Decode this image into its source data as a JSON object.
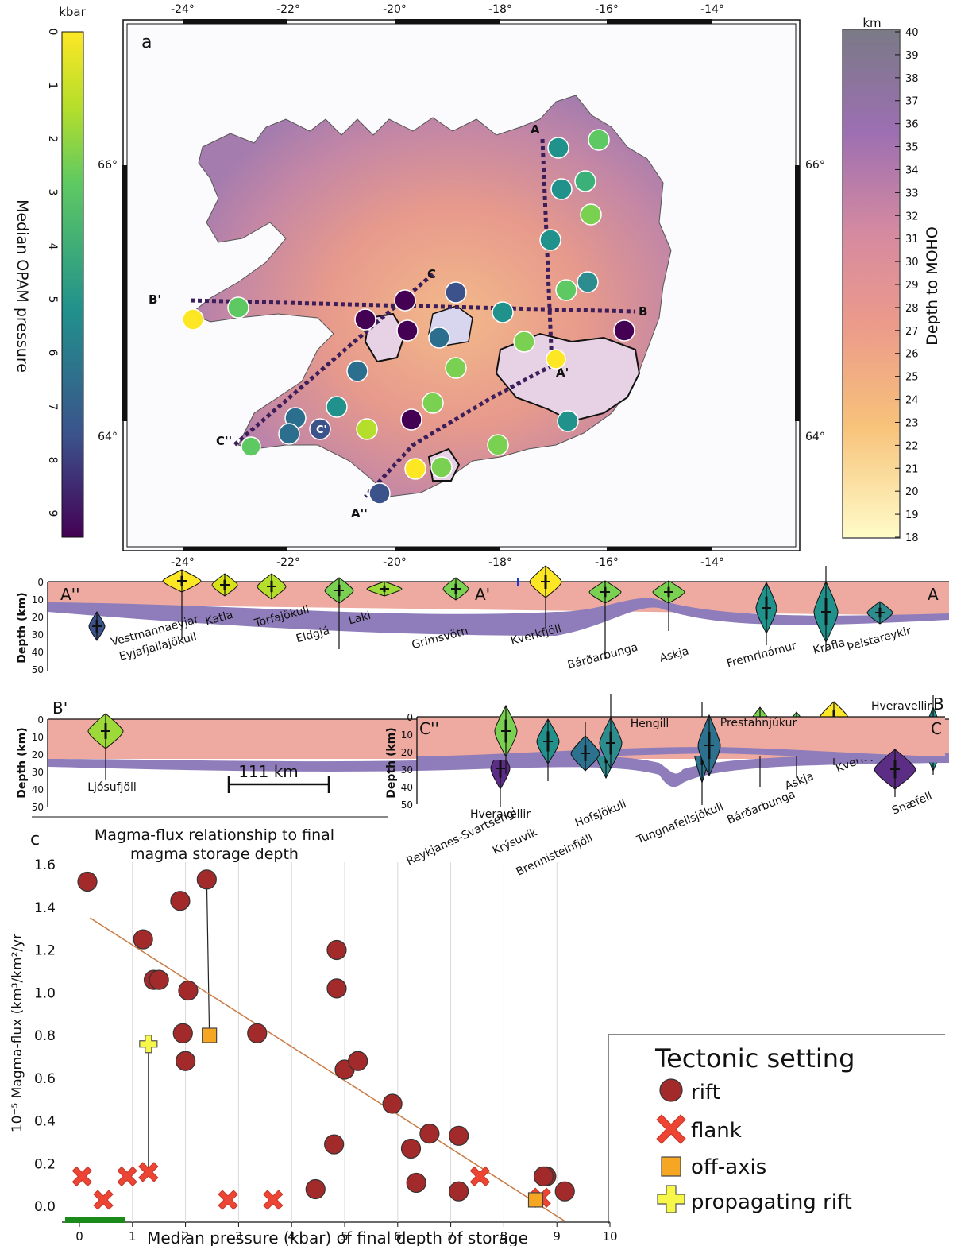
{
  "colors": {
    "opam": [
      "#440154",
      "#3b528b",
      "#21918c",
      "#5ec962",
      "#b5de2b",
      "#fde725"
    ],
    "moho": [
      "#fffcc8",
      "#f7c27a",
      "#ec9a8a",
      "#d58aa0",
      "#9c6fb2",
      "#7a7a86"
    ],
    "crust_band": "#eeaaa0",
    "mantle_band": "#8e7dba",
    "rift": "#a32a2a",
    "flank": "#ee4433",
    "off_axis": "#f5a623",
    "propagating": "#f7f74a",
    "trend": "#c97a43",
    "green_bar": "#1a8a1a"
  },
  "map": {
    "panel_label": "a",
    "lon_ticks": [
      "-24°",
      "-22°",
      "-20°",
      "-18°",
      "-16°",
      "-14°"
    ],
    "lat_ticks": [
      "66°",
      "64°"
    ],
    "left_cbar": {
      "unit": "kbar",
      "label": "Median OPAM pressure",
      "ticks": [
        "0",
        "1",
        "2",
        "3",
        "4",
        "5",
        "6",
        "7",
        "8",
        "9"
      ]
    },
    "right_cbar": {
      "unit": "km",
      "label": "Depth to MOHO",
      "ticks": [
        "40",
        "39",
        "38",
        "37",
        "36",
        "35",
        "34",
        "33",
        "32",
        "31",
        "30",
        "29",
        "28",
        "27",
        "26",
        "25",
        "24",
        "23",
        "22",
        "21",
        "20",
        "19",
        "18"
      ]
    },
    "line_labels": {
      "A": "A",
      "A1": "A'",
      "A2": "A''",
      "B": "B",
      "B1": "B'",
      "C": "C",
      "C1": "C'",
      "C2": "C''"
    }
  },
  "sections": {
    "depth_label": "Depth (km)",
    "depth_ticks": [
      "0",
      "10",
      "20",
      "30",
      "40",
      "50"
    ],
    "A": {
      "left_end": "A''",
      "mid_marker": "A'",
      "right_end": "A",
      "volcanoes": [
        "Vestmannaeyjar",
        "Eyjafjallajökull",
        "Katla",
        "Torfajökull",
        "Eldgjá",
        "Laki",
        "Grímsvötn",
        "Kverkfjöll",
        "Bárðarbunga",
        "Askja",
        "Fremrinámur",
        "Krafla",
        "Þeistareykir"
      ]
    },
    "B": {
      "left_end": "B'",
      "right_end": "B",
      "scale_label": "111 km",
      "volcanoes": [
        "Ljósufjöll",
        "Hveravellir",
        "Hofsjökull",
        "Tungnafellsjökull",
        "Bárðarbunga",
        "Askja",
        "Kverkfjöll",
        "Snæfell"
      ]
    },
    "C": {
      "left_end": "C''",
      "right_end": "C",
      "volcanoes": [
        "Reykjanes-Svartsengi",
        "Krýsuvík",
        "Brennisteinfjöll",
        "Hengill",
        "Prestahnjúkur",
        "Hveravellir"
      ]
    }
  },
  "scatter": {
    "panel_label": "c",
    "title_line1": "Magma-flux relationship to final",
    "title_line2": "magma storage depth",
    "legend_title": "Tectonic setting",
    "legend": [
      "rift",
      "flank",
      "off-axis",
      "propagating rift"
    ]
  },
  "chart_data": {
    "type": "scatter",
    "title": "Magma-flux relationship to final magma storage depth",
    "xlabel": "Median pressure (kbar) of final depth of storage",
    "ylabel": "10⁻⁵ Magma-flux (km³/km²/yr",
    "xlim": [
      -0.3,
      10
    ],
    "ylim": [
      -0.1,
      1.65
    ],
    "x_ticks": [
      "0",
      "1",
      "2",
      "3",
      "4",
      "5",
      "6",
      "7",
      "8",
      "9",
      "10"
    ],
    "y_ticks": [
      "0.0",
      "0.2",
      "0.4",
      "0.6",
      "0.8",
      "1.0",
      "1.2",
      "1.4",
      "1.6"
    ],
    "grid": "vertical",
    "legend_position": "bottom-right",
    "series": [
      {
        "name": "rift",
        "points": [
          [
            0.15,
            1.52
          ],
          [
            1.2,
            1.25
          ],
          [
            1.4,
            1.06
          ],
          [
            1.5,
            1.06
          ],
          [
            1.9,
            1.43
          ],
          [
            2.4,
            1.53
          ],
          [
            2.05,
            1.01
          ],
          [
            1.95,
            0.81
          ],
          [
            2.0,
            0.68
          ],
          [
            3.35,
            0.81
          ],
          [
            4.85,
            1.2
          ],
          [
            4.85,
            1.02
          ],
          [
            5.0,
            0.64
          ],
          [
            5.25,
            0.68
          ],
          [
            5.9,
            0.48
          ],
          [
            4.8,
            0.29
          ],
          [
            6.25,
            0.27
          ],
          [
            6.6,
            0.34
          ],
          [
            7.15,
            0.33
          ],
          [
            6.35,
            0.11
          ],
          [
            7.15,
            0.07
          ],
          [
            4.45,
            0.08
          ],
          [
            8.8,
            0.14
          ],
          [
            8.75,
            0.14
          ],
          [
            9.15,
            0.07
          ]
        ]
      },
      {
        "name": "flank",
        "points": [
          [
            0.05,
            0.14
          ],
          [
            0.45,
            0.03
          ],
          [
            0.9,
            0.14
          ],
          [
            1.3,
            0.16
          ],
          [
            2.8,
            0.03
          ],
          [
            3.65,
            0.03
          ],
          [
            7.55,
            0.14
          ],
          [
            8.7,
            0.04
          ]
        ]
      },
      {
        "name": "off-axis",
        "points": [
          [
            2.45,
            0.8
          ],
          [
            8.6,
            0.03
          ]
        ]
      },
      {
        "name": "propagating rift",
        "points": [
          [
            1.3,
            0.76
          ]
        ]
      }
    ],
    "connectors": [
      [
        [
          2.4,
          1.53
        ],
        [
          2.45,
          0.8
        ]
      ],
      [
        [
          1.3,
          0.76
        ],
        [
          1.3,
          0.16
        ]
      ]
    ],
    "trend_line": [
      [
        0.2,
        1.35
      ],
      [
        9.15,
        -0.07
      ]
    ]
  }
}
